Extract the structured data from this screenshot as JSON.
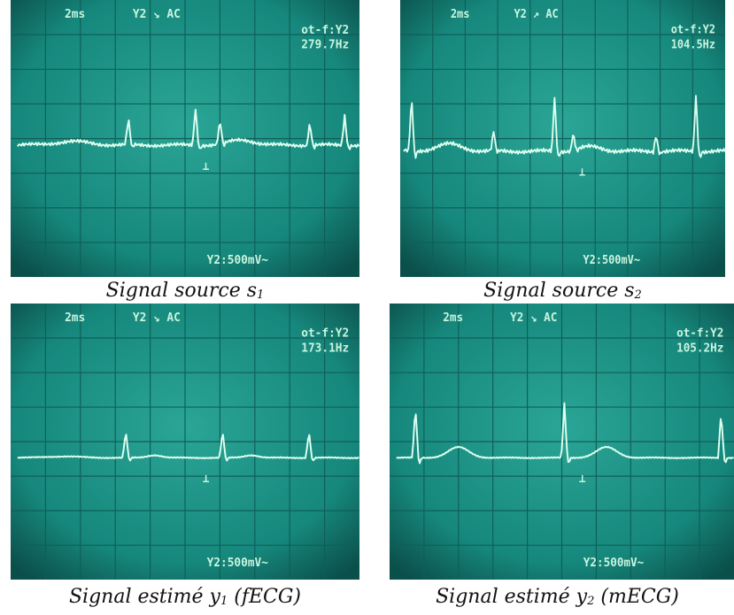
{
  "panels": [
    {
      "timebase": "2ms",
      "channel": "Y2 ↘ AC",
      "trigger": "ot-f:Y2",
      "frequency": "279.7Hz",
      "scale": "Y2:500mV~",
      "caption": {
        "main": "Signal source s",
        "sub": "1"
      }
    },
    {
      "timebase": "2ms",
      "channel": "Y2 ↗ AC",
      "trigger": "ot-f:Y2",
      "frequency": "104.5Hz",
      "scale": "Y2:500mV~",
      "caption": {
        "main": "Signal source s",
        "sub": "2"
      }
    },
    {
      "timebase": "2ms",
      "channel": "Y2 ↘ AC",
      "trigger": "ot-f:Y2",
      "frequency": "173.1Hz",
      "scale": "Y2:500mV~",
      "caption": {
        "main": "Signal estimé y",
        "sub": "1",
        "rest": " (fECG)"
      }
    },
    {
      "timebase": "2ms",
      "channel": "Y2 ↘ AC",
      "trigger": "ot-f:Y2",
      "frequency": "105.2Hz",
      "scale": "Y2:500mV~",
      "caption": {
        "main": "Signal estimé y",
        "sub": "2",
        "rest": " (mECG)"
      }
    }
  ]
}
